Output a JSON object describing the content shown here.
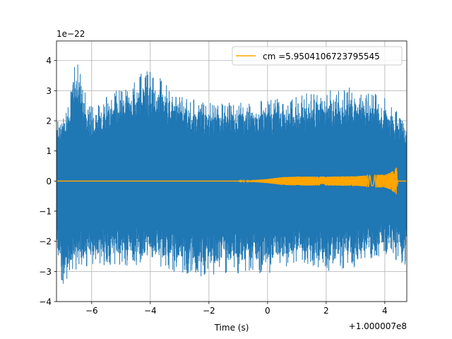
{
  "chart_data": {
    "type": "line",
    "title": "",
    "xlabel": "Time (s)",
    "ylabel": "",
    "x_offset_label": "+1.000007e8",
    "y_scale_label": "1e−22",
    "xlim": [
      -7.2,
      4.75
    ],
    "ylim": [
      -4,
      4.65
    ],
    "grid": true,
    "legend_placement": "top-right",
    "x_ticks": [
      {
        "value": -6,
        "label": "−6"
      },
      {
        "value": -4,
        "label": "−4"
      },
      {
        "value": -2,
        "label": "−2"
      },
      {
        "value": 0,
        "label": "0"
      },
      {
        "value": 2,
        "label": "2"
      },
      {
        "value": 4,
        "label": "4"
      }
    ],
    "y_ticks": [
      {
        "value": -4,
        "label": "−4"
      },
      {
        "value": -3,
        "label": "−3"
      },
      {
        "value": -2,
        "label": "−2"
      },
      {
        "value": -1,
        "label": "−1"
      },
      {
        "value": 0,
        "label": "0"
      },
      {
        "value": 1,
        "label": "1"
      },
      {
        "value": 2,
        "label": "2"
      },
      {
        "value": 3,
        "label": "3"
      },
      {
        "value": 4,
        "label": "4"
      }
    ],
    "series": [
      {
        "name": "",
        "color": "#1f77b4",
        "kind": "noise",
        "x_range": [
          -7.2,
          4.75
        ],
        "envelope_upper": [
          [
            -7.2,
            2.1
          ],
          [
            -6.8,
            2.5
          ],
          [
            -6.6,
            4.25
          ],
          [
            -6.0,
            2.5
          ],
          [
            -4.0,
            3.8
          ],
          [
            -3.0,
            2.9
          ],
          [
            -2.0,
            2.6
          ],
          [
            0,
            2.7
          ],
          [
            1.8,
            3.0
          ],
          [
            2.0,
            3.0
          ],
          [
            2.6,
            3.2
          ],
          [
            4.0,
            2.8
          ],
          [
            4.75,
            2.0
          ]
        ],
        "envelope_lower": [
          [
            -7.2,
            -2.2
          ],
          [
            -7.1,
            -3.6
          ],
          [
            -6.5,
            -2.9
          ],
          [
            -6.0,
            -2.9
          ],
          [
            -4.0,
            -2.8
          ],
          [
            -2.5,
            -3.2
          ],
          [
            -1.2,
            -3.1
          ],
          [
            0,
            -3.1
          ],
          [
            1.0,
            -2.7
          ],
          [
            2.0,
            -3.0
          ],
          [
            3.0,
            -2.9
          ],
          [
            4.0,
            -2.4
          ],
          [
            4.7,
            -2.8
          ],
          [
            4.75,
            -2.0
          ]
        ]
      },
      {
        "name": "cm =5.9504106723795545",
        "color": "#ffa500",
        "kind": "chirp",
        "amplitude_envelope": [
          [
            -7.2,
            0.0
          ],
          [
            -1.0,
            0.0
          ],
          [
            0.0,
            0.07
          ],
          [
            0.5,
            0.13
          ],
          [
            1.0,
            0.15
          ],
          [
            2.0,
            0.15
          ],
          [
            3.0,
            0.16
          ],
          [
            4.0,
            0.22
          ],
          [
            4.2,
            0.28
          ],
          [
            4.4,
            0.45
          ],
          [
            4.45,
            0.0
          ],
          [
            4.75,
            0.0
          ]
        ]
      }
    ]
  }
}
